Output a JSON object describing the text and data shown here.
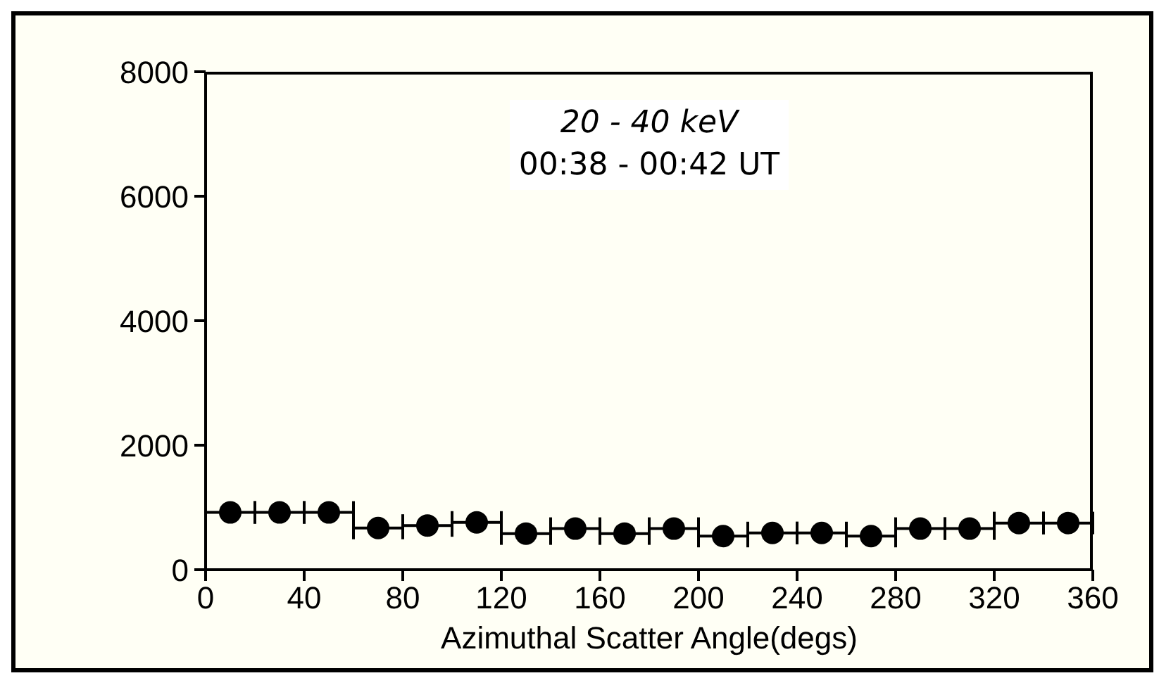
{
  "chart_data": {
    "type": "scatter",
    "xlabel": "Azimuthal Scatter Angle(degs)",
    "annotations": [
      "20 - 40 keV",
      "00:38 - 00:42 UT"
    ],
    "x": [
      10,
      30,
      50,
      70,
      90,
      110,
      130,
      150,
      170,
      190,
      210,
      230,
      250,
      270,
      290,
      310,
      330,
      350
    ],
    "values": [
      920,
      920,
      920,
      670,
      710,
      760,
      580,
      660,
      580,
      660,
      540,
      590,
      590,
      540,
      660,
      660,
      750,
      750
    ],
    "xerrors": [
      10,
      10,
      10,
      10,
      10,
      10,
      10,
      10,
      10,
      10,
      10,
      10,
      10,
      10,
      10,
      10,
      10,
      10
    ],
    "color": "#000000",
    "marker": "circle",
    "xlim": [
      0,
      360
    ],
    "xticks": [
      0,
      40,
      80,
      120,
      160,
      200,
      240,
      280,
      320,
      360
    ],
    "ylim": [
      0,
      8000
    ],
    "yticks": [
      0,
      2000,
      4000,
      6000,
      8000
    ],
    "grid": false,
    "legend": false
  }
}
